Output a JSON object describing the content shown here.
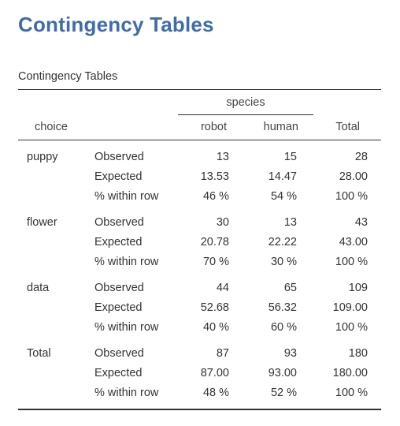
{
  "heading": "Contingency Tables",
  "table_title": "Contingency Tables",
  "headers": {
    "row_var": "choice",
    "span": "species",
    "col1": "robot",
    "col2": "human",
    "total": "Total"
  },
  "groups": [
    {
      "label": "puppy",
      "rows": [
        {
          "stat": "Observed",
          "robot": "13",
          "human": "15",
          "total": "28"
        },
        {
          "stat": "Expected",
          "robot": "13.53",
          "human": "14.47",
          "total": "28.00"
        },
        {
          "stat": "% within row",
          "robot": "46 %",
          "human": "54 %",
          "total": "100 %"
        }
      ]
    },
    {
      "label": "flower",
      "rows": [
        {
          "stat": "Observed",
          "robot": "30",
          "human": "13",
          "total": "43"
        },
        {
          "stat": "Expected",
          "robot": "20.78",
          "human": "22.22",
          "total": "43.00"
        },
        {
          "stat": "% within row",
          "robot": "70 %",
          "human": "30 %",
          "total": "100 %"
        }
      ]
    },
    {
      "label": "data",
      "rows": [
        {
          "stat": "Observed",
          "robot": "44",
          "human": "65",
          "total": "109"
        },
        {
          "stat": "Expected",
          "robot": "52.68",
          "human": "56.32",
          "total": "109.00"
        },
        {
          "stat": "% within row",
          "robot": "40 %",
          "human": "60 %",
          "total": "100 %"
        }
      ]
    },
    {
      "label": "Total",
      "rows": [
        {
          "stat": "Observed",
          "robot": "87",
          "human": "93",
          "total": "180"
        },
        {
          "stat": "Expected",
          "robot": "87.00",
          "human": "93.00",
          "total": "180.00"
        },
        {
          "stat": "% within row",
          "robot": "48 %",
          "human": "52 %",
          "total": "100 %"
        }
      ]
    }
  ],
  "colors": {
    "heading": "#3e6da9",
    "text": "#333333"
  }
}
